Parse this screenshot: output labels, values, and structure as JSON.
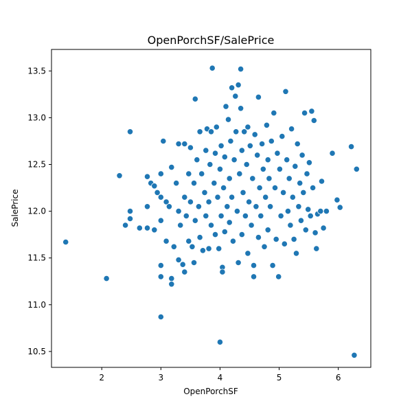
{
  "chart_data": {
    "type": "scatter",
    "title": "OpenPorchSF/SalePrice",
    "xlabel": "OpenPorchSF",
    "ylabel": "SalePrice",
    "xlim": [
      1.15,
      6.55
    ],
    "ylim": [
      10.33,
      13.73
    ],
    "xticks": [
      2,
      3,
      4,
      5,
      6
    ],
    "xtick_labels": [
      "2",
      "3",
      "4",
      "5",
      "6"
    ],
    "yticks": [
      10.5,
      11.0,
      11.5,
      12.0,
      12.5,
      13.0,
      13.5
    ],
    "ytick_labels": [
      "10.5",
      "11.0",
      "11.5",
      "12.0",
      "12.5",
      "13.0",
      "13.5"
    ],
    "grid": false,
    "legend": "none",
    "color": "#1f77b4",
    "points": [
      [
        1.39,
        11.67
      ],
      [
        2.08,
        11.28
      ],
      [
        2.3,
        12.38
      ],
      [
        2.4,
        11.85
      ],
      [
        2.48,
        12.85
      ],
      [
        2.48,
        12.0
      ],
      [
        2.48,
        11.92
      ],
      [
        2.64,
        11.82
      ],
      [
        2.77,
        12.37
      ],
      [
        2.77,
        12.05
      ],
      [
        2.77,
        11.82
      ],
      [
        2.83,
        12.3
      ],
      [
        2.89,
        12.27
      ],
      [
        2.89,
        11.8
      ],
      [
        2.94,
        12.2
      ],
      [
        3.0,
        12.4
      ],
      [
        3.0,
        12.15
      ],
      [
        3.0,
        11.9
      ],
      [
        3.0,
        11.42
      ],
      [
        3.0,
        11.3
      ],
      [
        3.0,
        10.87
      ],
      [
        3.04,
        12.75
      ],
      [
        3.09,
        12.1
      ],
      [
        3.09,
        11.68
      ],
      [
        3.14,
        12.05
      ],
      [
        3.18,
        12.47
      ],
      [
        3.18,
        11.28
      ],
      [
        3.18,
        11.22
      ],
      [
        3.22,
        11.62
      ],
      [
        3.26,
        12.3
      ],
      [
        3.3,
        12.72
      ],
      [
        3.3,
        12.0
      ],
      [
        3.3,
        11.48
      ],
      [
        3.33,
        11.85
      ],
      [
        3.37,
        11.43
      ],
      [
        3.4,
        12.72
      ],
      [
        3.4,
        12.15
      ],
      [
        3.4,
        11.35
      ],
      [
        3.43,
        11.95
      ],
      [
        3.47,
        12.4
      ],
      [
        3.47,
        11.68
      ],
      [
        3.5,
        12.68
      ],
      [
        3.5,
        12.1
      ],
      [
        3.53,
        11.62
      ],
      [
        3.56,
        12.3
      ],
      [
        3.56,
        11.45
      ],
      [
        3.58,
        13.2
      ],
      [
        3.58,
        11.9
      ],
      [
        3.61,
        12.55
      ],
      [
        3.64,
        12.05
      ],
      [
        3.66,
        12.85
      ],
      [
        3.66,
        11.72
      ],
      [
        3.69,
        12.4
      ],
      [
        3.71,
        11.58
      ],
      [
        3.74,
        12.2
      ],
      [
        3.76,
        12.65
      ],
      [
        3.76,
        11.95
      ],
      [
        3.78,
        12.88
      ],
      [
        3.81,
        12.1
      ],
      [
        3.81,
        11.6
      ],
      [
        3.83,
        12.5
      ],
      [
        3.85,
        12.85
      ],
      [
        3.85,
        11.85
      ],
      [
        3.87,
        13.53
      ],
      [
        3.9,
        12.3
      ],
      [
        3.92,
        12.62
      ],
      [
        3.92,
        11.75
      ],
      [
        3.94,
        12.9
      ],
      [
        3.96,
        12.15
      ],
      [
        3.98,
        11.6
      ],
      [
        4.0,
        12.45
      ],
      [
        4.0,
        10.6
      ],
      [
        4.02,
        12.7
      ],
      [
        4.02,
        11.95
      ],
      [
        4.04,
        11.4
      ],
      [
        4.04,
        11.35
      ],
      [
        4.06,
        12.25
      ],
      [
        4.08,
        12.58
      ],
      [
        4.08,
        11.78
      ],
      [
        4.1,
        13.12
      ],
      [
        4.12,
        12.05
      ],
      [
        4.14,
        12.98
      ],
      [
        4.16,
        12.35
      ],
      [
        4.16,
        11.88
      ],
      [
        4.18,
        12.75
      ],
      [
        4.2,
        13.32
      ],
      [
        4.2,
        12.15
      ],
      [
        4.22,
        11.68
      ],
      [
        4.24,
        12.55
      ],
      [
        4.26,
        13.23
      ],
      [
        4.27,
        12.85
      ],
      [
        4.29,
        12.0
      ],
      [
        4.31,
        13.35
      ],
      [
        4.31,
        11.45
      ],
      [
        4.33,
        12.4
      ],
      [
        4.35,
        13.52
      ],
      [
        4.35,
        13.1
      ],
      [
        4.37,
        12.65
      ],
      [
        4.37,
        11.75
      ],
      [
        4.39,
        12.2
      ],
      [
        4.41,
        12.85
      ],
      [
        4.43,
        11.95
      ],
      [
        4.45,
        12.5
      ],
      [
        4.47,
        12.9
      ],
      [
        4.47,
        11.55
      ],
      [
        4.49,
        12.1
      ],
      [
        4.51,
        12.7
      ],
      [
        4.53,
        11.85
      ],
      [
        4.55,
        12.35
      ],
      [
        4.57,
        11.42
      ],
      [
        4.57,
        11.3
      ],
      [
        4.59,
        12.82
      ],
      [
        4.61,
        12.05
      ],
      [
        4.63,
        12.6
      ],
      [
        4.65,
        13.22
      ],
      [
        4.65,
        11.72
      ],
      [
        4.67,
        12.25
      ],
      [
        4.69,
        11.95
      ],
      [
        4.71,
        12.72
      ],
      [
        4.73,
        12.45
      ],
      [
        4.75,
        11.62
      ],
      [
        4.77,
        12.15
      ],
      [
        4.79,
        12.92
      ],
      [
        4.81,
        12.55
      ],
      [
        4.81,
        11.8
      ],
      [
        4.83,
        12.35
      ],
      [
        4.85,
        12.05
      ],
      [
        4.87,
        12.75
      ],
      [
        4.89,
        11.42
      ],
      [
        4.91,
        13.05
      ],
      [
        4.93,
        12.25
      ],
      [
        4.95,
        11.7
      ],
      [
        4.97,
        12.62
      ],
      [
        4.99,
        11.3
      ],
      [
        5.01,
        12.45
      ],
      [
        5.03,
        11.95
      ],
      [
        5.05,
        12.8
      ],
      [
        5.07,
        12.2
      ],
      [
        5.09,
        11.65
      ],
      [
        5.11,
        13.28
      ],
      [
        5.13,
        12.55
      ],
      [
        5.15,
        12.0
      ],
      [
        5.17,
        12.35
      ],
      [
        5.19,
        11.85
      ],
      [
        5.21,
        12.88
      ],
      [
        5.23,
        12.15
      ],
      [
        5.25,
        11.7
      ],
      [
        5.27,
        12.48
      ],
      [
        5.29,
        11.55
      ],
      [
        5.31,
        12.72
      ],
      [
        5.33,
        12.05
      ],
      [
        5.35,
        12.3
      ],
      [
        5.37,
        11.9
      ],
      [
        5.39,
        12.6
      ],
      [
        5.41,
        12.2
      ],
      [
        5.43,
        13.05
      ],
      [
        5.45,
        11.8
      ],
      [
        5.47,
        12.4
      ],
      [
        5.49,
        12.02
      ],
      [
        5.51,
        12.52
      ],
      [
        5.53,
        11.95
      ],
      [
        5.55,
        13.07
      ],
      [
        5.57,
        12.25
      ],
      [
        5.59,
        12.97
      ],
      [
        5.61,
        11.77
      ],
      [
        5.63,
        11.6
      ],
      [
        5.65,
        11.97
      ],
      [
        5.7,
        12.0
      ],
      [
        5.72,
        12.32
      ],
      [
        5.75,
        11.82
      ],
      [
        5.8,
        12.0
      ],
      [
        5.9,
        12.62
      ],
      [
        5.98,
        12.12
      ],
      [
        6.03,
        12.04
      ],
      [
        6.22,
        12.69
      ],
      [
        6.27,
        10.46
      ],
      [
        6.31,
        12.45
      ]
    ]
  }
}
